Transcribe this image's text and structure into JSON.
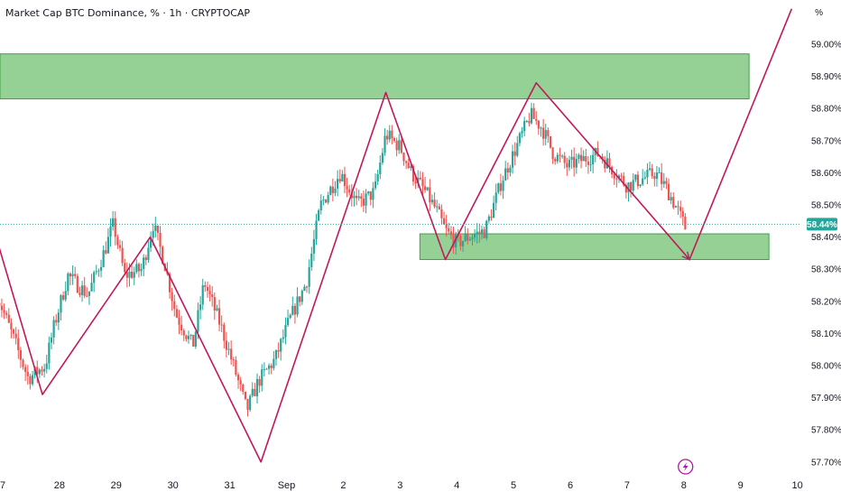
{
  "header": {
    "title": "Market Cap BTC Dominance, % · 1h · CRYPTOCAP",
    "unit": "%"
  },
  "colors": {
    "up": "#26a69a",
    "down": "#ef5350",
    "zone_fill": "#8fcf8f",
    "zone_stroke": "#43a047",
    "pattern_line": "#c2185b",
    "price_label_bg": "#26a69a"
  },
  "icons": {
    "events": "lightning-icon"
  },
  "chart_data": {
    "type": "candlestick",
    "title": "Market Cap BTC Dominance, % · 1h · CRYPTOCAP",
    "ylabel": "%",
    "ylim": [
      57.69,
      59.11
    ],
    "xlim": [
      26.9,
      41.0
    ],
    "grid": false,
    "y_ticks": [
      "59.00%",
      "58.90%",
      "58.80%",
      "58.70%",
      "58.60%",
      "58.50%",
      "58.40%",
      "58.30%",
      "58.20%",
      "58.10%",
      "58.00%",
      "57.90%",
      "57.80%",
      "57.70%"
    ],
    "x_ticks": [
      {
        "label": "7",
        "x": 27
      },
      {
        "label": "28",
        "x": 28
      },
      {
        "label": "29",
        "x": 29
      },
      {
        "label": "30",
        "x": 30
      },
      {
        "label": "31",
        "x": 31
      },
      {
        "label": "Sep",
        "x": 32
      },
      {
        "label": "2",
        "x": 33
      },
      {
        "label": "3",
        "x": 34
      },
      {
        "label": "4",
        "x": 35
      },
      {
        "label": "5",
        "x": 36
      },
      {
        "label": "6",
        "x": 37
      },
      {
        "label": "7",
        "x": 38
      },
      {
        "label": "8",
        "x": 39
      },
      {
        "label": "9",
        "x": 40
      },
      {
        "label": "10",
        "x": 41
      }
    ],
    "last_price": 58.44,
    "last_price_label": "58.44%",
    "close_anchors": [
      [
        26.9,
        58.22
      ],
      [
        27.2,
        58.08
      ],
      [
        27.45,
        57.96
      ],
      [
        27.75,
        58.0
      ],
      [
        27.9,
        58.12
      ],
      [
        28.15,
        58.28
      ],
      [
        28.5,
        58.22
      ],
      [
        28.8,
        58.36
      ],
      [
        28.95,
        58.44
      ],
      [
        29.15,
        58.28
      ],
      [
        29.45,
        58.3
      ],
      [
        29.65,
        58.44
      ],
      [
        29.85,
        58.32
      ],
      [
        30.05,
        58.16
      ],
      [
        30.35,
        58.06
      ],
      [
        30.55,
        58.26
      ],
      [
        30.85,
        58.12
      ],
      [
        31.1,
        57.98
      ],
      [
        31.3,
        57.86
      ],
      [
        31.5,
        57.95
      ],
      [
        31.8,
        58.02
      ],
      [
        32.05,
        58.14
      ],
      [
        32.35,
        58.26
      ],
      [
        32.6,
        58.5
      ],
      [
        32.95,
        58.6
      ],
      [
        33.25,
        58.5
      ],
      [
        33.55,
        58.54
      ],
      [
        33.75,
        58.72
      ],
      [
        34.0,
        58.68
      ],
      [
        34.2,
        58.6
      ],
      [
        34.45,
        58.54
      ],
      [
        34.65,
        58.48
      ],
      [
        34.8,
        58.42
      ],
      [
        35.0,
        58.38
      ],
      [
        35.2,
        58.4
      ],
      [
        35.5,
        58.42
      ],
      [
        35.8,
        58.58
      ],
      [
        36.0,
        58.66
      ],
      [
        36.3,
        58.78
      ],
      [
        36.5,
        58.74
      ],
      [
        36.7,
        58.66
      ],
      [
        36.95,
        58.62
      ],
      [
        37.2,
        58.64
      ],
      [
        37.5,
        58.66
      ],
      [
        37.8,
        58.6
      ],
      [
        38.0,
        58.56
      ],
      [
        38.25,
        58.58
      ],
      [
        38.5,
        58.6
      ],
      [
        38.7,
        58.55
      ],
      [
        38.9,
        58.48
      ],
      [
        39.05,
        58.42
      ]
    ],
    "resistance_zone": {
      "y_low": 58.83,
      "y_high": 58.97,
      "x_start": 26.9,
      "x_end": 40.15
    },
    "support_zone": {
      "y_low": 58.33,
      "y_high": 58.41,
      "x_start": 34.35,
      "x_end": 40.5
    },
    "pattern_line": [
      {
        "x": 26.9,
        "y": 58.39
      },
      {
        "x": 27.7,
        "y": 57.91
      },
      {
        "x": 29.6,
        "y": 58.4
      },
      {
        "x": 31.55,
        "y": 57.7
      },
      {
        "x": 33.75,
        "y": 58.85
      },
      {
        "x": 34.8,
        "y": 58.33
      },
      {
        "x": 36.4,
        "y": 58.88
      },
      {
        "x": 39.1,
        "y": 58.33
      },
      {
        "x": 40.9,
        "y": 59.11
      }
    ],
    "arrow": {
      "from": {
        "x": 36.4,
        "y": 58.88
      },
      "to": {
        "x": 39.1,
        "y": 58.33
      }
    }
  }
}
